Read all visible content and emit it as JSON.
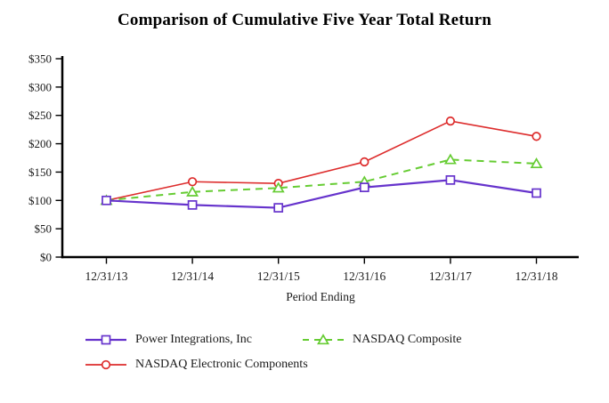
{
  "page": {
    "background": "#ffffff",
    "text_color": "#1a1a1a",
    "axis_color": "#000000"
  },
  "chart_data": {
    "type": "line",
    "title": "Comparison of Cumulative Five Year Total Return",
    "xlabel": "Period Ending",
    "ylabel": "",
    "categories": [
      "12/31/13",
      "12/31/14",
      "12/31/15",
      "12/31/16",
      "12/31/17",
      "12/31/18"
    ],
    "yticks": [
      0,
      50,
      100,
      150,
      200,
      250,
      300,
      350
    ],
    "ytick_prefix": "$",
    "ylim": [
      0,
      350
    ],
    "grid": false,
    "legend_position": "below-chart, two rows (first two items on row one, third on row two)",
    "series": [
      {
        "name": "Power Integrations, Inc",
        "color": "#6633CC",
        "marker": "square",
        "line_style": "solid",
        "values": [
          100,
          92,
          87,
          123,
          136,
          113
        ]
      },
      {
        "name": "NASDAQ Composite",
        "color": "#66CC33",
        "marker": "triangle",
        "line_style": "dashed",
        "values": [
          100,
          115,
          122,
          133,
          172,
          165
        ]
      },
      {
        "name": "NASDAQ Electronic Components",
        "color": "#DD2C2C",
        "marker": "circle",
        "line_style": "solid",
        "values": [
          100,
          133,
          130,
          168,
          240,
          213
        ]
      }
    ]
  }
}
